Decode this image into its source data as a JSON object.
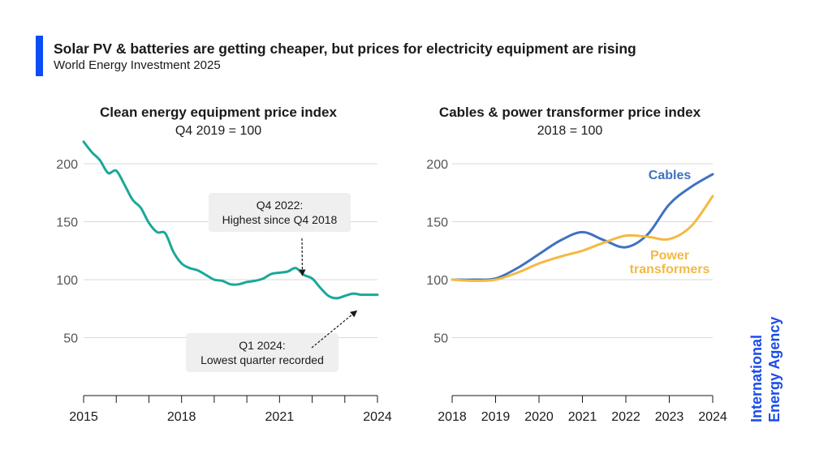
{
  "header": {
    "title": "Solar PV & batteries are getting cheaper, but prices for electricity equipment are rising",
    "subtitle": "World Energy Investment 2025",
    "accent_color": "#0b4df5"
  },
  "brand": {
    "line1": "International",
    "line2": "Energy Agency",
    "color": "#1a4ce8"
  },
  "chart_data": [
    {
      "type": "line",
      "title": "Clean energy equipment price index",
      "subtitle": "Q4 2019 = 100",
      "xlim": [
        2015,
        2024
      ],
      "ylim": [
        0,
        220
      ],
      "yticks": [
        50,
        100,
        150,
        200
      ],
      "xtick_labels": [
        {
          "x": 2015,
          "label": "2015"
        },
        {
          "x": 2018,
          "label": "2018"
        },
        {
          "x": 2021,
          "label": "2021"
        },
        {
          "x": 2024,
          "label": "2024"
        }
      ],
      "xtick_marks": [
        2015,
        2016,
        2017,
        2018,
        2019,
        2020,
        2021,
        2022,
        2023,
        2024
      ],
      "grid": true,
      "series": [
        {
          "name": "",
          "color": "#1aa89a",
          "x": [
            2015.0,
            2015.25,
            2015.5,
            2015.75,
            2016.0,
            2016.25,
            2016.5,
            2016.75,
            2017.0,
            2017.25,
            2017.5,
            2017.75,
            2018.0,
            2018.25,
            2018.5,
            2018.75,
            2019.0,
            2019.25,
            2019.5,
            2019.75,
            2020.0,
            2020.25,
            2020.5,
            2020.75,
            2021.0,
            2021.25,
            2021.5,
            2021.75,
            2022.0,
            2022.25,
            2022.5,
            2022.75,
            2023.0,
            2023.25,
            2023.5,
            2023.75,
            2024.0
          ],
          "values": [
            219,
            210,
            203,
            192,
            194,
            182,
            169,
            162,
            149,
            141,
            140,
            124,
            114,
            110,
            108,
            104,
            100,
            99,
            96,
            96,
            98,
            99,
            101,
            105,
            106,
            107,
            110,
            104,
            101,
            93,
            86,
            84,
            86,
            88,
            87,
            87,
            87
          ]
        }
      ],
      "annotations": [
        {
          "text_lines": [
            "Q4 2022:",
            "Highest since Q4 2018"
          ],
          "x": 2021.75,
          "y": 109
        },
        {
          "text_lines": [
            "Q1 2024:",
            "Lowest quarter recorded"
          ],
          "x": 2023.5,
          "y": 84
        }
      ]
    },
    {
      "type": "line",
      "title": "Cables & power transformer price index",
      "subtitle": "2018 = 100",
      "xlim": [
        2018,
        2024
      ],
      "ylim": [
        0,
        220
      ],
      "yticks": [
        50,
        100,
        150,
        200
      ],
      "xtick_labels": [
        {
          "x": 2018,
          "label": "2018"
        },
        {
          "x": 2019,
          "label": "2019"
        },
        {
          "x": 2020,
          "label": "2020"
        },
        {
          "x": 2021,
          "label": "2021"
        },
        {
          "x": 2022,
          "label": "2022"
        },
        {
          "x": 2023,
          "label": "2023"
        },
        {
          "x": 2024,
          "label": "2024"
        }
      ],
      "xtick_marks": [
        2018,
        2019,
        2020,
        2021,
        2022,
        2023,
        2024
      ],
      "grid": true,
      "series": [
        {
          "name": "Cables",
          "label_lines": [
            "Cables"
          ],
          "color": "#3f72c2",
          "x": [
            2018.0,
            2018.5,
            2019.0,
            2019.5,
            2020.0,
            2020.5,
            2021.0,
            2021.5,
            2022.0,
            2022.5,
            2023.0,
            2023.5,
            2024.0
          ],
          "values": [
            100,
            100,
            101,
            110,
            122,
            134,
            141,
            134,
            128,
            139,
            165,
            180,
            191
          ]
        },
        {
          "name": "Power transformers",
          "label_lines": [
            "Power",
            "transformers"
          ],
          "color": "#f4b942",
          "x": [
            2018.0,
            2018.5,
            2019.0,
            2019.5,
            2020.0,
            2020.5,
            2021.0,
            2021.5,
            2022.0,
            2022.5,
            2023.0,
            2023.5,
            2024.0
          ],
          "values": [
            100,
            99,
            100,
            106,
            114,
            120,
            125,
            132,
            138,
            137,
            135,
            146,
            172
          ]
        }
      ]
    }
  ]
}
